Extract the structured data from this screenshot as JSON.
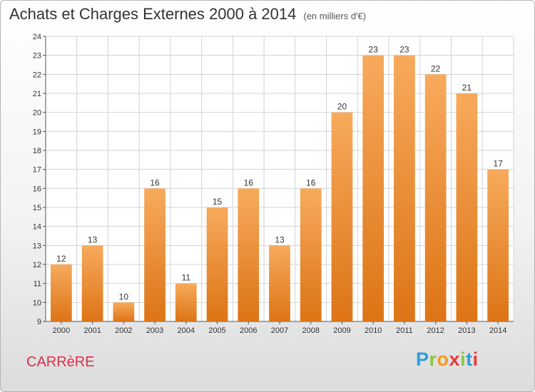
{
  "header": {
    "title": "Achats et Charges Externes 2000 à 2014",
    "unit": "(en milliers d'€)"
  },
  "commune": "CARRèRE",
  "logo": {
    "letters": [
      "P",
      "r",
      "o",
      "x",
      "i",
      "t",
      "i"
    ],
    "colors": [
      "#2e9fdb",
      "#8bc43f",
      "#f39a1e",
      "#e23b3b",
      "#8bc43f",
      "#2e9fdb",
      "#e23b3b"
    ]
  },
  "colors": {
    "bar_light": "#f7aa5c",
    "bar_dark": "#dd7416",
    "gridline": "#d3d3d3"
  },
  "chart_data": {
    "type": "bar",
    "title": "Achats et Charges Externes 2000 à 2014",
    "subtitle": "(en milliers d'€)",
    "categories": [
      "2000",
      "2001",
      "2002",
      "2003",
      "2004",
      "2005",
      "2006",
      "2007",
      "2008",
      "2009",
      "2010",
      "2011",
      "2012",
      "2013",
      "2014"
    ],
    "values": [
      12,
      13,
      10,
      16,
      11,
      15,
      16,
      13,
      16,
      20,
      23,
      23,
      22,
      21,
      17
    ],
    "ylim": [
      9,
      24
    ],
    "yticks": [
      9,
      10,
      11,
      12,
      13,
      14,
      15,
      16,
      17,
      18,
      19,
      20,
      21,
      22,
      23,
      24
    ],
    "grid": true,
    "data_labels": true
  }
}
